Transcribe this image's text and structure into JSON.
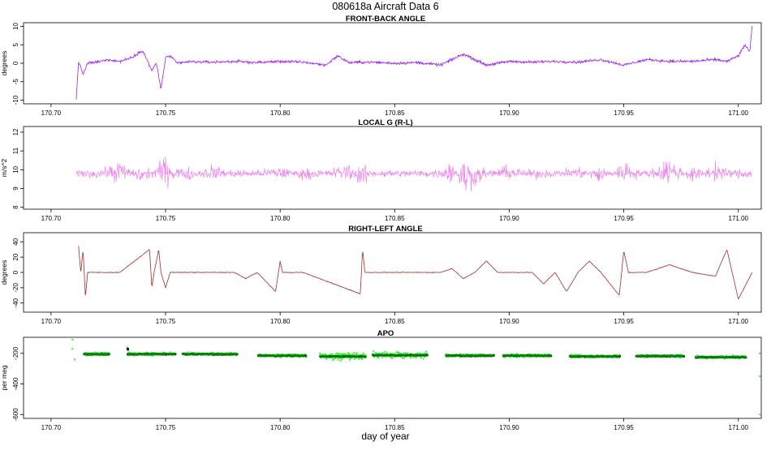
{
  "title": "080618a   Aircraft Data 6",
  "xlabel": "day of year",
  "chart_data": [
    {
      "type": "line",
      "title": "FRONT-BACK ANGLE",
      "ylabel": "degrees",
      "xlim": [
        170.688,
        171.01
      ],
      "ylim": [
        -11,
        11
      ],
      "xticks": [
        "170.70",
        "170.75",
        "170.80",
        "170.85",
        "170.90",
        "170.95",
        "171.00"
      ],
      "yticks": [
        "10",
        "5",
        "0",
        "-5",
        "-10"
      ],
      "color": "#a020f0",
      "series": [
        {
          "x": [
            170.711,
            170.712,
            170.714,
            170.716,
            170.72,
            170.725,
            170.73,
            170.735,
            170.74,
            170.744,
            170.746,
            170.748,
            170.75,
            170.752,
            170.755,
            170.76,
            170.77,
            170.78,
            170.79,
            170.8,
            170.81,
            170.82,
            170.825,
            170.83,
            170.84,
            170.85,
            170.86,
            170.87,
            170.875,
            170.88,
            170.885,
            170.89,
            170.9,
            170.91,
            170.92,
            170.93,
            170.94,
            170.95,
            170.96,
            170.97,
            170.98,
            170.99,
            170.995,
            171.0,
            171.003,
            171.005,
            171.006
          ],
          "y": [
            -10,
            0.5,
            -3,
            0,
            0.3,
            1,
            0.5,
            1.5,
            3.5,
            -2,
            0,
            -7,
            1.5,
            2,
            0,
            0.4,
            0.3,
            0.5,
            0.2,
            0.5,
            0.3,
            -0.5,
            2,
            0.2,
            0.3,
            0,
            0.2,
            -0.5,
            1,
            2.5,
            1,
            -0.5,
            0.5,
            0.3,
            0.5,
            0.3,
            1,
            -0.5,
            1,
            0.5,
            0.5,
            1,
            0.5,
            2,
            5,
            3,
            10
          ]
        }
      ]
    },
    {
      "type": "line",
      "title": "LOCAL G (R-L)",
      "ylabel": "m/s^2",
      "xlim": [
        170.688,
        171.01
      ],
      "ylim": [
        7.9,
        12.3
      ],
      "xticks": [
        "170.70",
        "170.75",
        "170.80",
        "170.85",
        "170.90",
        "170.95",
        "171.00"
      ],
      "yticks": [
        "12",
        "11",
        "10",
        "9",
        "8"
      ],
      "color": "#ee82ee",
      "series": [
        {
          "x": [
            170.711,
            170.72,
            170.73,
            170.74,
            170.75,
            170.76,
            170.77,
            170.78,
            170.79,
            170.8,
            170.81,
            170.82,
            170.83,
            170.835,
            170.838,
            170.84,
            170.85,
            170.86,
            170.87,
            170.875,
            170.88,
            170.885,
            170.89,
            170.9,
            170.91,
            170.92,
            170.93,
            170.94,
            170.95,
            170.96,
            170.97,
            170.98,
            170.99,
            171.0,
            171.006
          ],
          "y": [
            9.8,
            9.7,
            10.5,
            9.2,
            10.8,
            9.5,
            10.2,
            9.7,
            9.8,
            10.1,
            9.6,
            9.8,
            10.3,
            9.1,
            9.4,
            9.8,
            9.75,
            9.8,
            9.7,
            10.8,
            8.5,
            9.2,
            9.7,
            10.2,
            9.6,
            9.8,
            10.1,
            9.3,
            10.4,
            9.7,
            10.6,
            9.4,
            10.3,
            9.6,
            9.8
          ]
        }
      ]
    },
    {
      "type": "line",
      "title": "RIGHT-LEFT ANGLE",
      "ylabel": "degrees",
      "xlim": [
        170.688,
        171.01
      ],
      "ylim": [
        -52,
        52
      ],
      "xticks": [
        "170.70",
        "170.75",
        "170.80",
        "170.85",
        "170.90",
        "170.95",
        "171.00"
      ],
      "yticks": [
        "40",
        "20",
        "0",
        "-20",
        "-40"
      ],
      "color": "#a52a2a",
      "series": [
        {
          "x": [
            170.712,
            170.713,
            170.714,
            170.715,
            170.716,
            170.717,
            170.72,
            170.73,
            170.743,
            170.744,
            170.745,
            170.747,
            170.748,
            170.75,
            170.752,
            170.754,
            170.76,
            170.78,
            170.785,
            170.79,
            170.798,
            170.8,
            170.801,
            170.81,
            170.835,
            170.836,
            170.837,
            170.84,
            170.85,
            170.86,
            170.87,
            170.875,
            170.88,
            170.885,
            170.89,
            170.895,
            170.9,
            170.91,
            170.915,
            170.92,
            170.925,
            170.93,
            170.935,
            170.94,
            170.948,
            170.95,
            170.952,
            170.96,
            170.97,
            170.98,
            170.99,
            170.995,
            171.0,
            171.006
          ],
          "y": [
            35,
            0,
            30,
            -33,
            0,
            0,
            0,
            0,
            30,
            -20,
            0,
            30,
            0,
            -20,
            0,
            0,
            0,
            0,
            -8,
            0,
            -25,
            15,
            0,
            0,
            -28,
            30,
            0,
            0,
            0,
            0,
            0,
            5,
            -8,
            0,
            15,
            0,
            0,
            0,
            -15,
            0,
            -25,
            0,
            15,
            0,
            -30,
            28,
            0,
            0,
            10,
            0,
            -5,
            30,
            -35,
            0
          ]
        }
      ]
    },
    {
      "type": "scatter",
      "title": "APO",
      "ylabel": "per meg",
      "xlim": [
        170.688,
        171.01
      ],
      "ylim": [
        -625,
        -95
      ],
      "xticks": [
        "170.70",
        "170.75",
        "170.80",
        "170.85",
        "170.90",
        "170.95",
        "171.00"
      ],
      "yticks": [
        "-200",
        "-400",
        "-600"
      ],
      "colors": {
        "dark": "#006400",
        "light": "#33ee33"
      },
      "series": [
        {
          "segments": [
            [
              170.714,
              170.725,
              -205
            ],
            [
              170.733,
              170.754,
              -205
            ],
            [
              170.757,
              170.781,
              -205
            ],
            [
              170.79,
              170.811,
              -215
            ],
            [
              170.817,
              170.837,
              -220
            ],
            [
              170.84,
              170.864,
              -212
            ],
            [
              170.872,
              170.893,
              -215
            ],
            [
              170.897,
              170.918,
              -215
            ],
            [
              170.926,
              170.948,
              -220
            ],
            [
              170.955,
              170.976,
              -218
            ],
            [
              170.981,
              171.003,
              -225
            ]
          ]
        }
      ]
    }
  ]
}
